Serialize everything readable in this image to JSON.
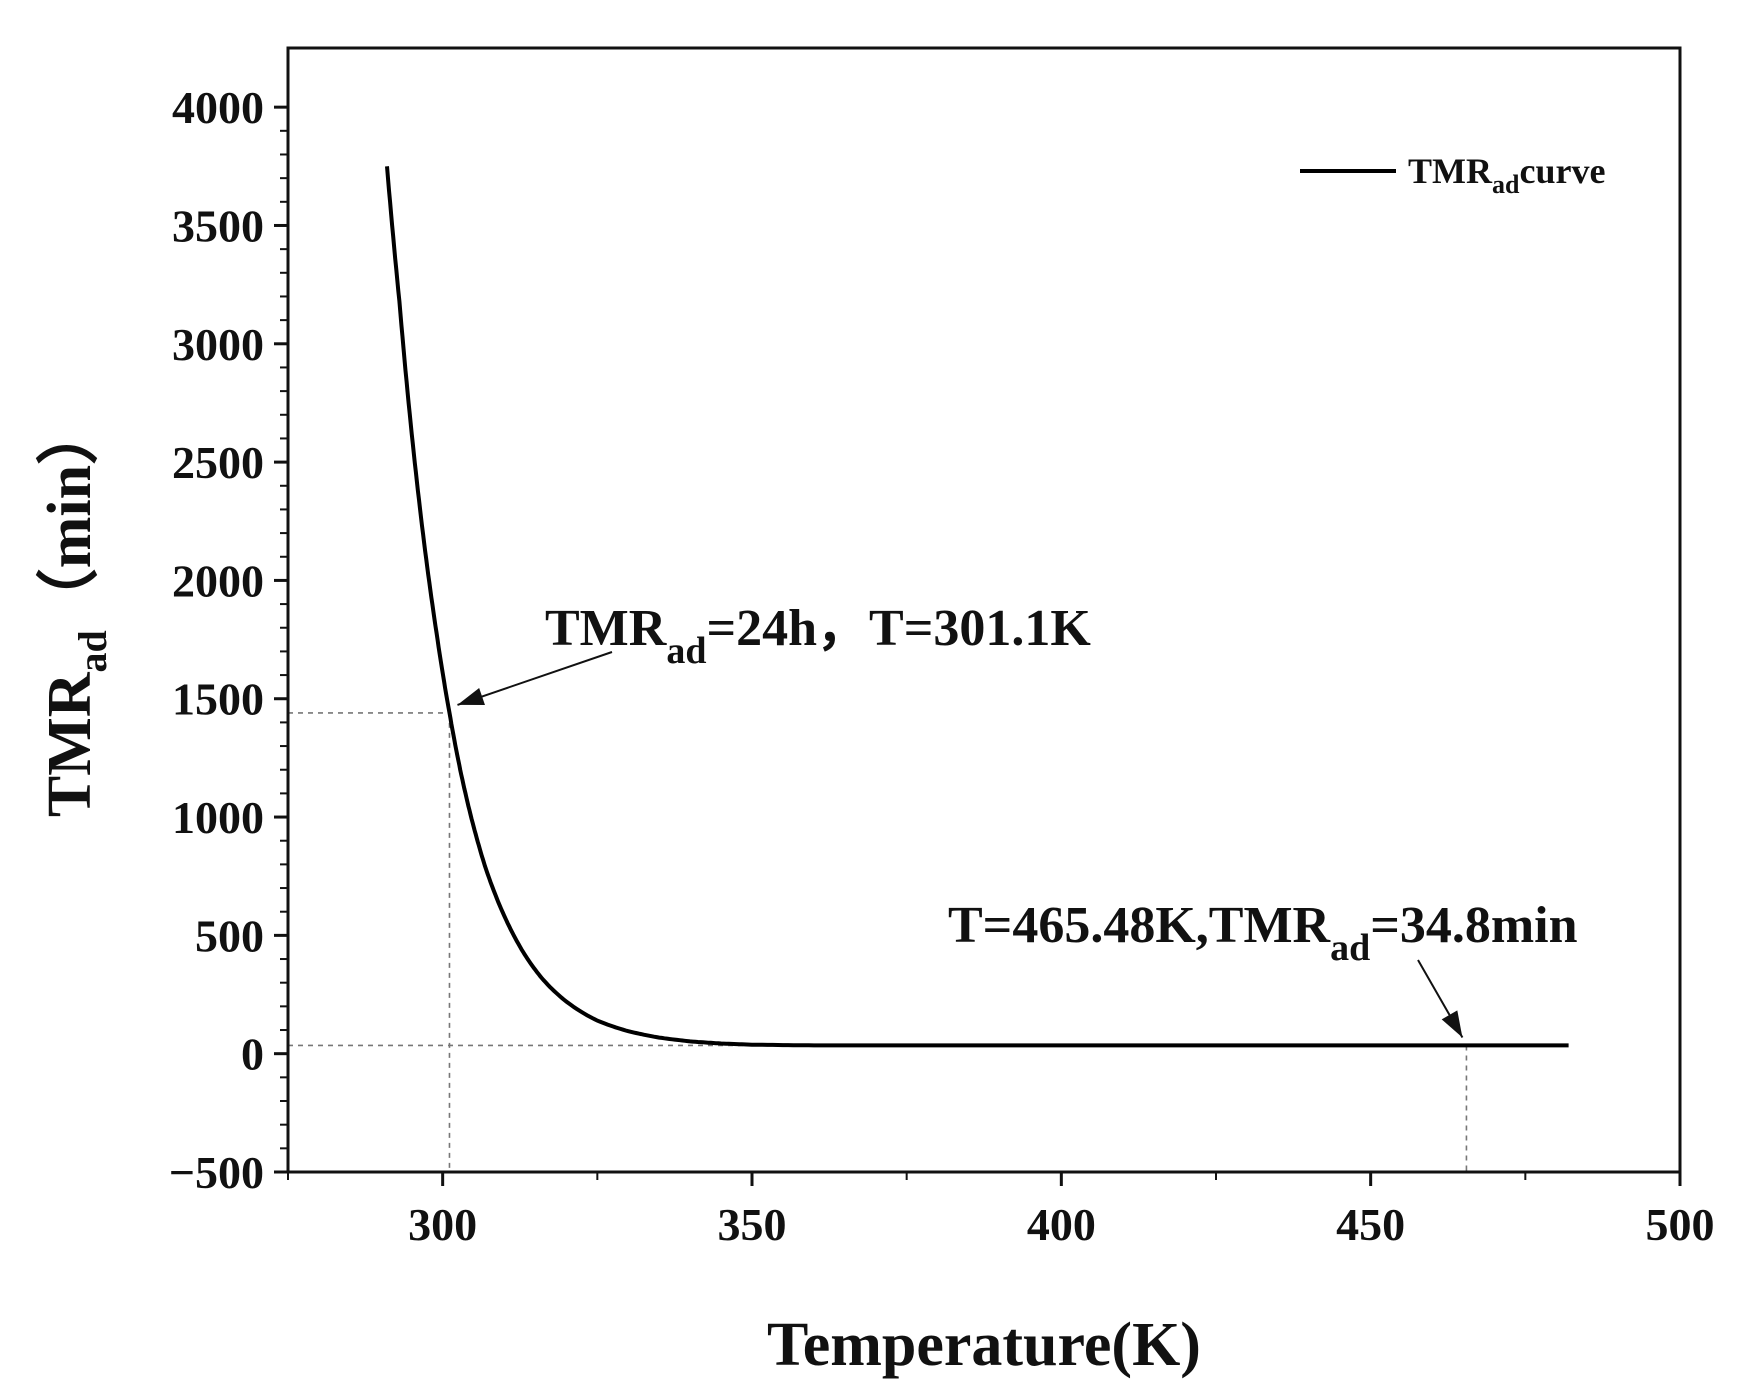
{
  "chart_data": {
    "type": "line",
    "xlabel": "Temperature(K)",
    "ylabel": {
      "main": "TMR",
      "sub": "ad",
      "unit": "（min）"
    },
    "xlim": [
      275,
      500
    ],
    "ylim": [
      -500,
      4250
    ],
    "x_ticks": [
      300,
      350,
      400,
      450,
      500
    ],
    "y_ticks": [
      -500,
      0,
      500,
      1000,
      1500,
      2000,
      2500,
      3000,
      3500,
      4000
    ],
    "x_tick_labels": [
      "300",
      "350",
      "400",
      "450",
      "500"
    ],
    "y_tick_labels": [
      "−500",
      "0",
      "500",
      "1000",
      "1500",
      "2000",
      "2500",
      "3000",
      "3500",
      "4000"
    ],
    "grid": false,
    "legend": {
      "position": "top-right",
      "label": {
        "main": "TMR",
        "sub": "ad",
        "suffix": "curve"
      }
    },
    "series": [
      {
        "name": "TMRadcurve",
        "color": "#000000",
        "x": [
          291,
          293,
          295,
          297,
          299,
          301.1,
          303,
          305,
          307,
          310,
          313,
          316,
          320,
          325,
          330,
          335,
          340,
          345,
          350,
          360,
          370,
          380,
          400,
          420,
          440,
          465.48,
          482
        ],
        "y": [
          3750,
          3180,
          2620,
          2160,
          1780,
          1440,
          1180,
          960,
          780,
          580,
          430,
          320,
          220,
          140,
          95,
          68,
          52,
          43,
          38,
          35,
          34.9,
          34.8,
          34.8,
          34.8,
          34.8,
          34.8,
          34.8
        ]
      }
    ],
    "annotations": [
      {
        "point": [
          301.1,
          1440
        ],
        "text": {
          "pre": "TMR",
          "sub": "ad",
          "post": "=24h，T=301.1K"
        }
      },
      {
        "point": [
          465.48,
          34.8
        ],
        "text": {
          "pre": "T=465.48K,TMR",
          "sub": "ad",
          "post": "=34.8min"
        }
      }
    ]
  }
}
